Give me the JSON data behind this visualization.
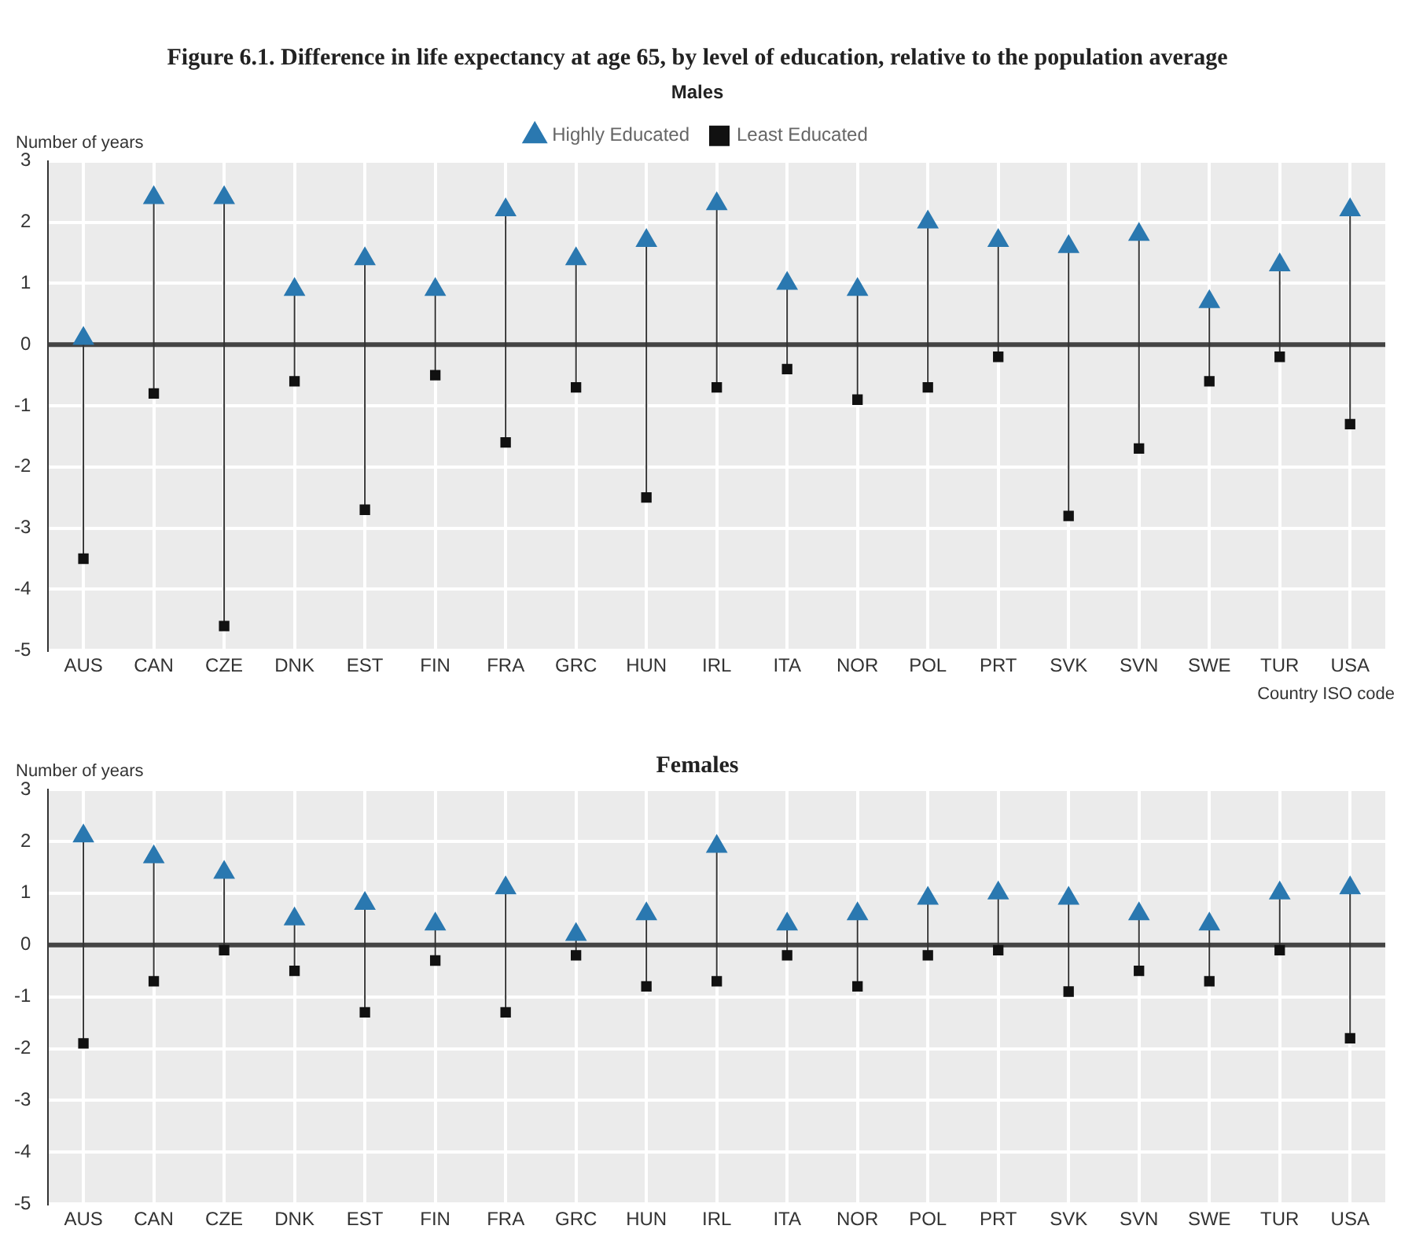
{
  "chart_data": [
    {
      "type": "scatter",
      "title": "Figure 6.1. Difference in life expectancy at age 65, by level of education, relative to the population average",
      "subtitle": "Males",
      "xlabel": "Country ISO code",
      "ylabel": "Number of years",
      "categories": [
        "AUS",
        "CAN",
        "CZE",
        "DNK",
        "EST",
        "FIN",
        "FRA",
        "GRC",
        "HUN",
        "IRL",
        "ITA",
        "NOR",
        "POL",
        "PRT",
        "SVK",
        "SVN",
        "SWE",
        "TUR",
        "USA"
      ],
      "series": [
        {
          "name": "Highly Educated",
          "color": "#2a78b0",
          "marker": "triangle",
          "values": [
            0.1,
            2.4,
            2.4,
            0.9,
            1.4,
            0.9,
            2.2,
            1.4,
            1.7,
            2.3,
            1.0,
            0.9,
            2.0,
            1.7,
            1.6,
            1.8,
            0.7,
            1.3,
            2.2
          ]
        },
        {
          "name": "Least Educated",
          "color": "#111111",
          "marker": "square",
          "values": [
            -3.5,
            -0.8,
            -4.6,
            -0.6,
            -2.7,
            -0.5,
            -1.6,
            -0.7,
            -2.5,
            -0.7,
            -0.4,
            -0.9,
            -0.7,
            -0.2,
            -2.8,
            -1.7,
            -0.6,
            -0.2,
            -1.3
          ]
        }
      ],
      "ylim": [
        -5,
        3
      ],
      "yticks": [
        -5,
        -4,
        -3,
        -2,
        -1,
        0,
        1,
        2,
        3
      ],
      "grid": true,
      "legend": "top",
      "ref_lines": [
        {
          "axis": "y",
          "value": 0,
          "color": "#444444"
        }
      ]
    },
    {
      "type": "scatter",
      "title": "Females",
      "ylabel": "Number of years",
      "categories": [
        "AUS",
        "CAN",
        "CZE",
        "DNK",
        "EST",
        "FIN",
        "FRA",
        "GRC",
        "HUN",
        "IRL",
        "ITA",
        "NOR",
        "POL",
        "PRT",
        "SVK",
        "SVN",
        "SWE",
        "TUR",
        "USA"
      ],
      "series": [
        {
          "color": "#2a78b0",
          "marker": "triangle",
          "values": [
            2.1,
            1.7,
            1.4,
            0.5,
            0.8,
            0.4,
            1.1,
            0.2,
            0.6,
            1.9,
            0.4,
            0.6,
            0.9,
            1.0,
            0.9,
            0.6,
            0.4,
            1.0,
            1.1
          ]
        },
        {
          "color": "#111111",
          "marker": "square",
          "values": [
            -1.9,
            -0.7,
            -0.1,
            -0.5,
            -1.3,
            -0.3,
            -1.3,
            -0.2,
            -0.8,
            -0.7,
            -0.2,
            -0.8,
            -0.2,
            -0.1,
            -0.9,
            -0.5,
            -0.7,
            -0.1,
            -1.8
          ]
        }
      ],
      "ylim": [
        -5,
        3
      ],
      "yticks": [
        -5,
        -4,
        -3,
        -2,
        -1,
        0,
        1,
        2,
        3
      ],
      "grid": true,
      "legend": false,
      "ref_lines": [
        {
          "axis": "y",
          "value": 0,
          "color": "#444444"
        }
      ]
    }
  ]
}
